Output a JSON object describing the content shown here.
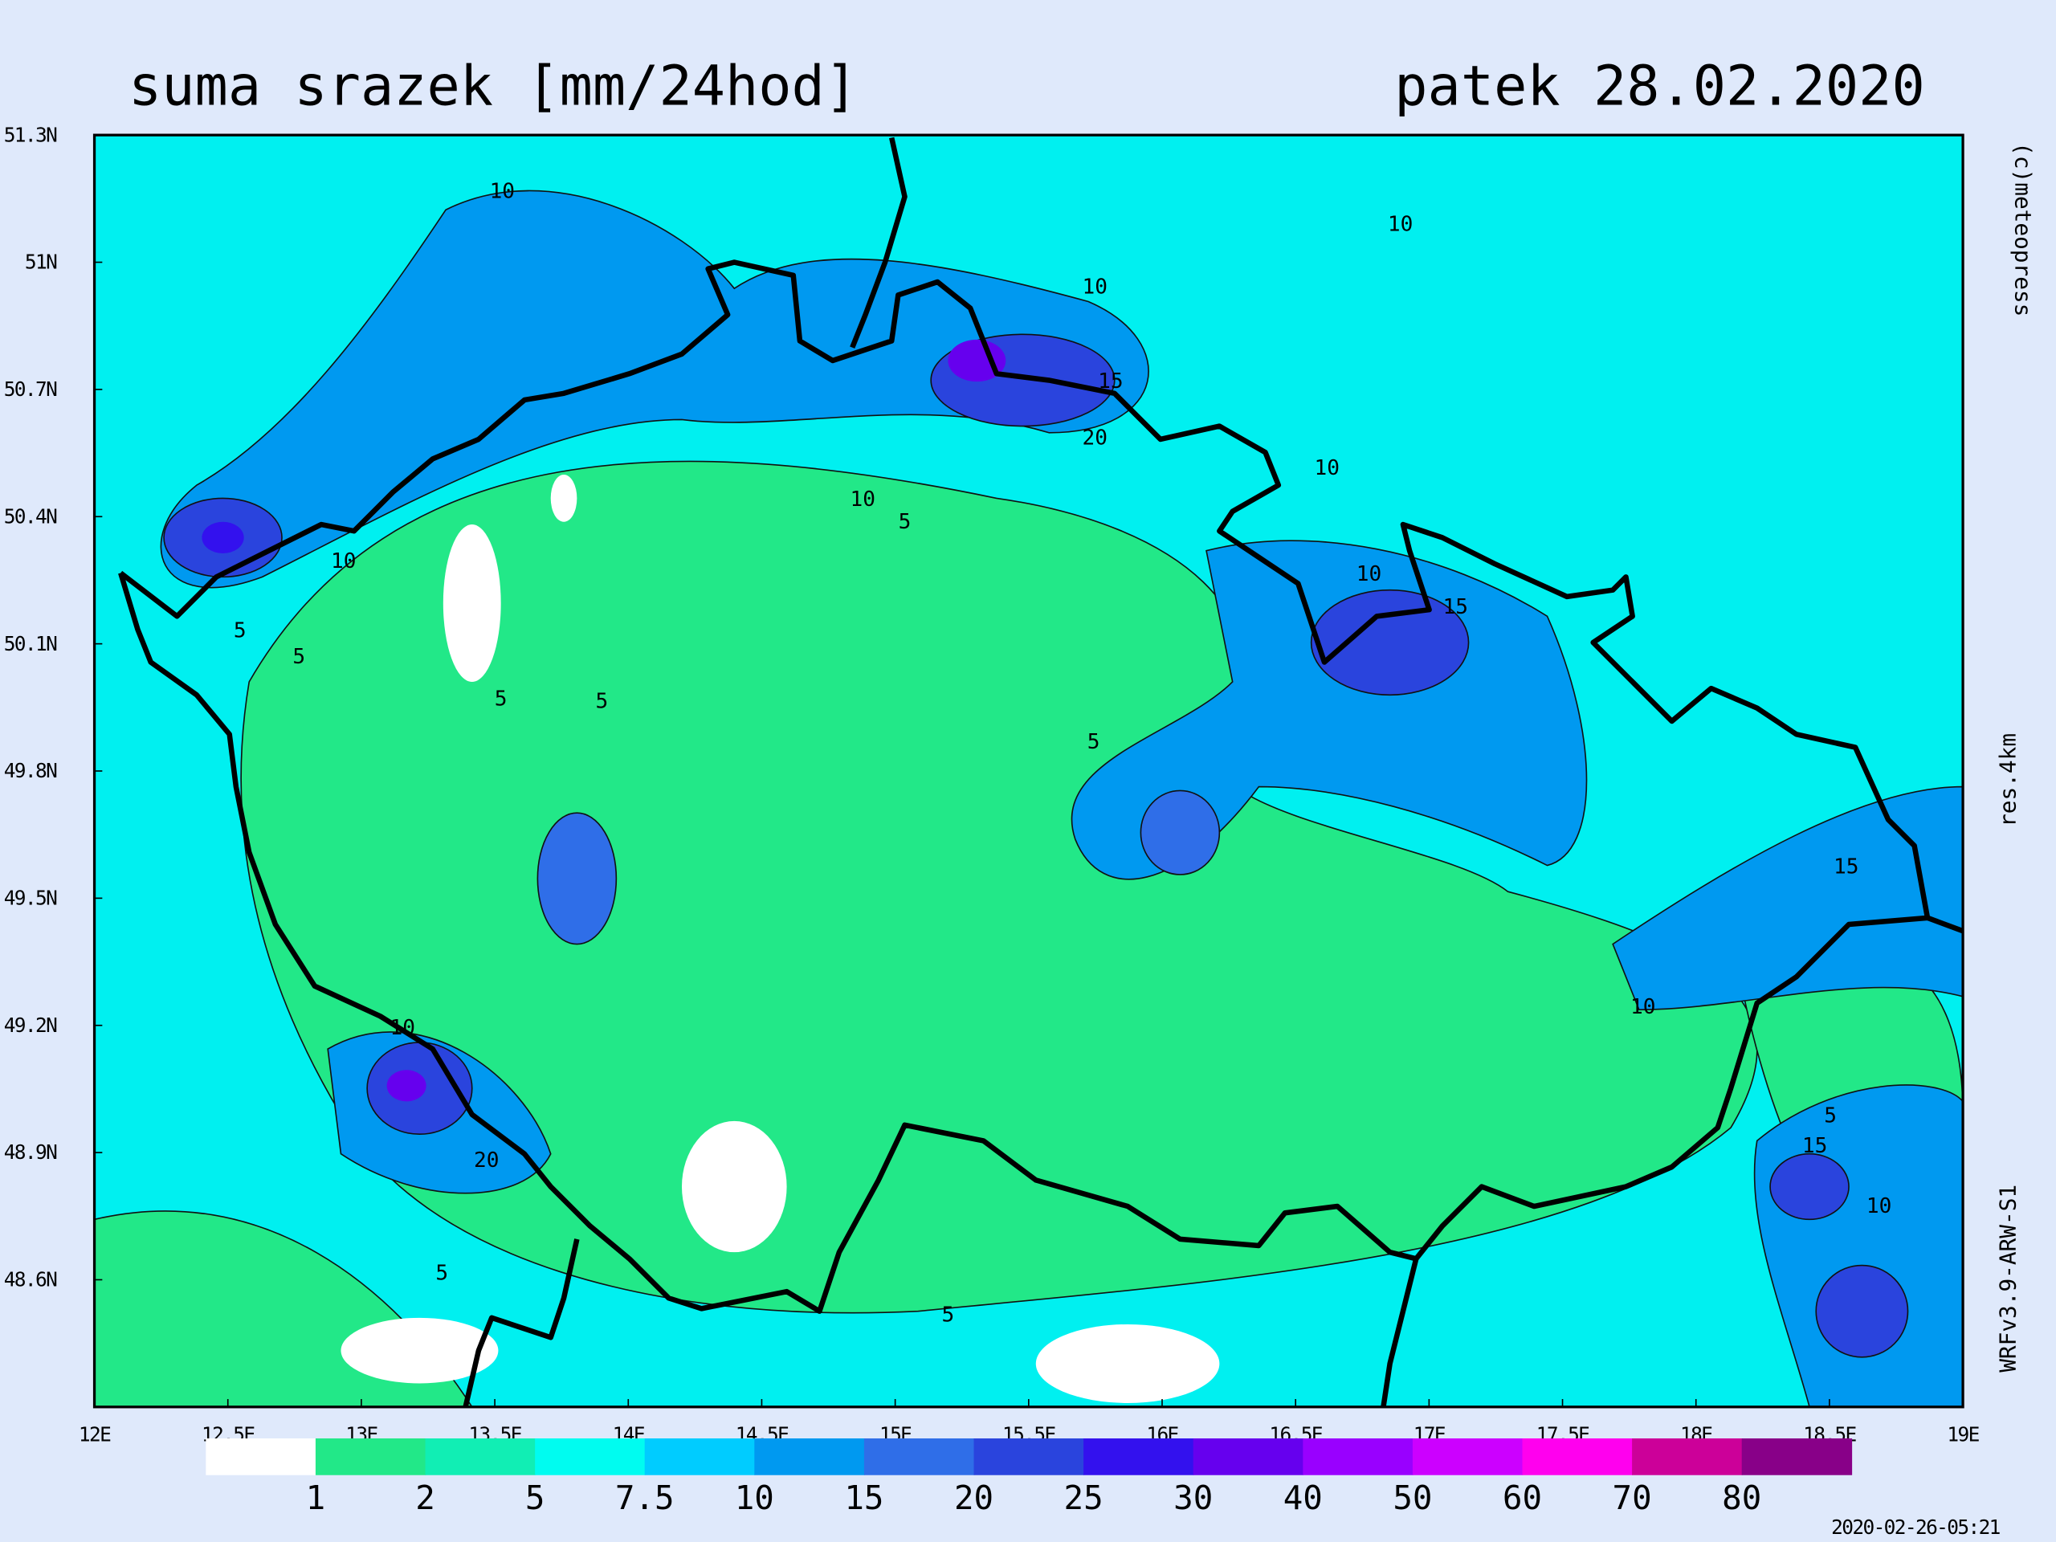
{
  "header": {
    "title": "suma srazek [mm/24hod]",
    "date": "patek 28.02.2020"
  },
  "side_texts": {
    "copyright": "(c)meteopress",
    "resolution": "res.4km",
    "model": "WRFv3.9-ARW-S1"
  },
  "timestamp": "2020-02-26-05:21",
  "lon_ticks": [
    {
      "value": 12,
      "label": "12E"
    },
    {
      "value": 12.5,
      "label": "12.5E"
    },
    {
      "value": 13,
      "label": "13E"
    },
    {
      "value": 13.5,
      "label": "13.5E"
    },
    {
      "value": 14,
      "label": "14E"
    },
    {
      "value": 14.5,
      "label": "14.5E"
    },
    {
      "value": 15,
      "label": "15E"
    },
    {
      "value": 15.5,
      "label": "15.5E"
    },
    {
      "value": 16,
      "label": "16E"
    },
    {
      "value": 16.5,
      "label": "16.5E"
    },
    {
      "value": 17,
      "label": "17E"
    },
    {
      "value": 17.5,
      "label": "17.5E"
    },
    {
      "value": 18,
      "label": "18E"
    },
    {
      "value": 18.5,
      "label": "18.5E"
    },
    {
      "value": 19,
      "label": "19E"
    }
  ],
  "lat_ticks": [
    {
      "value": 51.3,
      "label": "51.3N"
    },
    {
      "value": 51,
      "label": "51N"
    },
    {
      "value": 50.7,
      "label": "50.7N"
    },
    {
      "value": 50.4,
      "label": "50.4N"
    },
    {
      "value": 50.1,
      "label": "50.1N"
    },
    {
      "value": 49.8,
      "label": "49.8N"
    },
    {
      "value": 49.5,
      "label": "49.5N"
    },
    {
      "value": 49.2,
      "label": "49.2N"
    },
    {
      "value": 48.9,
      "label": "48.9N"
    },
    {
      "value": 48.6,
      "label": "48.6N"
    }
  ],
  "lonlim": [
    12,
    19
  ],
  "latlim": [
    48.3,
    51.3
  ],
  "colorbar": {
    "levels": [
      1,
      2,
      5,
      7.5,
      10,
      15,
      20,
      25,
      30,
      40,
      50,
      60,
      70,
      80
    ],
    "colors": [
      "#ffffff",
      "#22e888",
      "#11eeb4",
      "#00fcf0",
      "#00ccff",
      "#0099f0",
      "#2f6ee8",
      "#2a44dd",
      "#3311ee",
      "#6600ee",
      "#9900ff",
      "#cc00ff",
      "#ff00ee",
      "#cc0099",
      "#880088"
    ]
  },
  "contour_labels": [
    10,
    10,
    10,
    15,
    20,
    10,
    10,
    5,
    10,
    10,
    15,
    5,
    5,
    5,
    5,
    5,
    15,
    10,
    10,
    5,
    15,
    20,
    10,
    5,
    5
  ]
}
